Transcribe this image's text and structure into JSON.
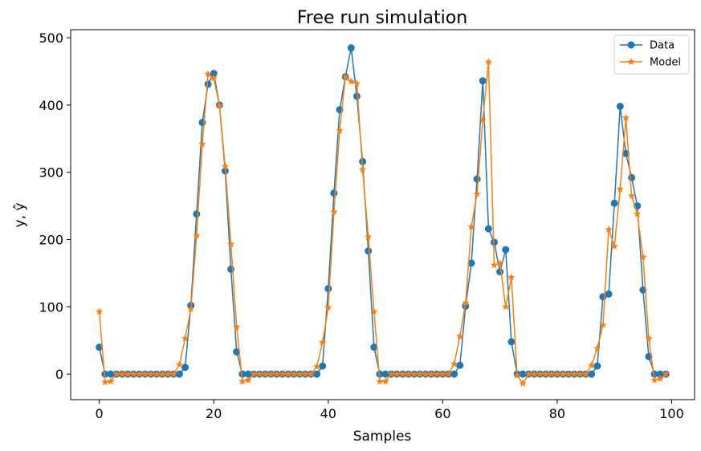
{
  "chart_data": {
    "type": "line",
    "title": "Free run simulation",
    "xlabel": "Samples",
    "ylabel": "y, ŷ",
    "xlim": [
      -5,
      104
    ],
    "ylim": [
      -38,
      512
    ],
    "xticks": [
      0,
      20,
      40,
      60,
      80,
      100
    ],
    "yticks": [
      0,
      100,
      200,
      300,
      400,
      500
    ],
    "grid": false,
    "legend_position": "top-right",
    "series": [
      {
        "name": "Data",
        "color": "#1f77b4",
        "marker": "circle",
        "values": [
          40,
          0,
          0,
          0,
          0,
          0,
          0,
          0,
          0,
          0,
          0,
          0,
          0,
          0,
          0,
          10,
          102,
          238,
          374,
          431,
          447,
          400,
          302,
          156,
          33,
          0,
          0,
          0,
          0,
          0,
          0,
          0,
          0,
          0,
          0,
          0,
          0,
          0,
          0,
          12,
          127,
          269,
          393,
          442,
          485,
          413,
          316,
          183,
          40,
          0,
          0,
          0,
          0,
          0,
          0,
          0,
          0,
          0,
          0,
          0,
          0,
          0,
          0,
          13,
          101,
          165,
          290,
          436,
          216,
          196,
          152,
          185,
          48,
          0,
          0,
          0,
          0,
          0,
          0,
          0,
          0,
          0,
          0,
          0,
          0,
          0,
          0,
          12,
          115,
          119,
          254,
          398,
          328,
          292,
          250,
          125,
          26,
          0,
          0,
          0
        ]
      },
      {
        "name": "Model",
        "color": "#ff7f0e",
        "marker": "star",
        "values": [
          93,
          -12,
          -11,
          0,
          0,
          0,
          0,
          0,
          0,
          0,
          0,
          0,
          0,
          0,
          14,
          53,
          97,
          206,
          342,
          446,
          440,
          399,
          309,
          193,
          70,
          -11,
          -9,
          0,
          0,
          0,
          0,
          0,
          0,
          0,
          0,
          0,
          0,
          0,
          11,
          47,
          99,
          241,
          362,
          442,
          435,
          432,
          304,
          204,
          93,
          -11,
          -11,
          0,
          0,
          0,
          0,
          0,
          0,
          0,
          0,
          0,
          0,
          0,
          15,
          56,
          106,
          219,
          268,
          378,
          464,
          162,
          165,
          100,
          144,
          -2,
          -14,
          0,
          0,
          0,
          0,
          0,
          0,
          0,
          0,
          0,
          0,
          0,
          13,
          38,
          73,
          215,
          190,
          275,
          381,
          265,
          238,
          174,
          53,
          -9,
          -7,
          0
        ]
      }
    ]
  }
}
